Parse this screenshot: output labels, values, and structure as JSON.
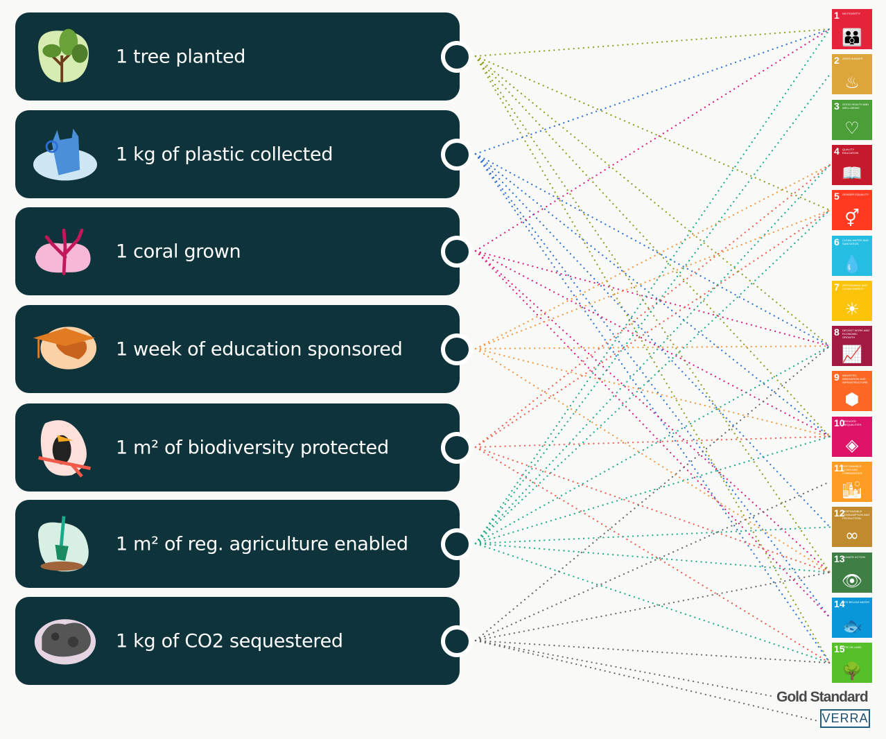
{
  "impacts": [
    {
      "label": "1 tree planted",
      "icon": "tree-icon",
      "color": "#8f9c1a",
      "targets": [
        "1",
        "5",
        "8",
        "10",
        "13",
        "15"
      ]
    },
    {
      "label": "1 kg of plastic collected",
      "icon": "plastic-bag-icon",
      "color": "#2a6fd6",
      "targets": [
        "1",
        "8",
        "10",
        "12",
        "14",
        "15"
      ]
    },
    {
      "label": "1 coral grown",
      "icon": "coral-icon",
      "color": "#d81b7a",
      "targets": [
        "1",
        "8",
        "10",
        "13",
        "14"
      ]
    },
    {
      "label": "1 week of education sponsored",
      "icon": "graduation-cap-icon",
      "color": "#f5963a",
      "targets": [
        "4",
        "5",
        "8",
        "10",
        "13"
      ]
    },
    {
      "label": "1 m² of biodiversity protected",
      "icon": "toucan-icon",
      "color": "#ef5a4a",
      "targets": [
        "4",
        "5",
        "10",
        "13",
        "15"
      ]
    },
    {
      "label": "1 m² of reg.  agriculture enabled",
      "icon": "shovel-icon",
      "color": "#1aaa8a",
      "targets": [
        "1",
        "2",
        "4",
        "5",
        "8",
        "10",
        "12",
        "13",
        "15"
      ]
    },
    {
      "label": "1 kg of CO2 sequestered",
      "icon": "rock-icon",
      "color": "#666666",
      "targets": [
        "8",
        "11",
        "13",
        "15",
        "gold",
        "verra"
      ]
    }
  ],
  "sdgs": [
    {
      "id": "1",
      "num": "1",
      "title": "No poverty",
      "color": "#e5243b",
      "icon": "people-icon",
      "glyph": "👪"
    },
    {
      "id": "2",
      "num": "2",
      "title": "Zero hunger",
      "color": "#dda63a",
      "icon": "bowl-icon",
      "glyph": "♨"
    },
    {
      "id": "3",
      "num": "3",
      "title": "Good health and well-being",
      "color": "#4c9f38",
      "icon": "heartbeat-icon",
      "glyph": "♡"
    },
    {
      "id": "4",
      "num": "4",
      "title": "Quality education",
      "color": "#c5192d",
      "icon": "book-icon",
      "glyph": "📖"
    },
    {
      "id": "5",
      "num": "5",
      "title": "Gender equality",
      "color": "#ff3a21",
      "icon": "gender-icon",
      "glyph": "⚥"
    },
    {
      "id": "6",
      "num": "6",
      "title": "Clean water and sanitation",
      "color": "#26bde2",
      "icon": "water-icon",
      "glyph": "💧"
    },
    {
      "id": "7",
      "num": "7",
      "title": "Affordable and clean energy",
      "color": "#fcc30b",
      "icon": "sun-power-icon",
      "glyph": "☀"
    },
    {
      "id": "8",
      "num": "8",
      "title": "Decent work and economic growth",
      "color": "#a21942",
      "icon": "growth-chart-icon",
      "glyph": "📈"
    },
    {
      "id": "9",
      "num": "9",
      "title": "Industry, innovation and infrastructure",
      "color": "#fd6925",
      "icon": "cubes-icon",
      "glyph": "⬢"
    },
    {
      "id": "10",
      "num": "10",
      "title": "Reduced inequalities",
      "color": "#dd1367",
      "icon": "arrows-icon",
      "glyph": "◈"
    },
    {
      "id": "11",
      "num": "11",
      "title": "Sustainable cities and communities",
      "color": "#fd9d24",
      "icon": "city-icon",
      "glyph": "🏙"
    },
    {
      "id": "12",
      "num": "12",
      "title": "Responsible consumption and production",
      "color": "#bf8b2e",
      "icon": "infinity-icon",
      "glyph": "∞"
    },
    {
      "id": "13",
      "num": "13",
      "title": "Climate action",
      "color": "#3f7e44",
      "icon": "eye-globe-icon",
      "glyph": "👁"
    },
    {
      "id": "14",
      "num": "14",
      "title": "Life below water",
      "color": "#0a97d9",
      "icon": "fish-icon",
      "glyph": "🐟"
    },
    {
      "id": "15",
      "num": "15",
      "title": "Life on land",
      "color": "#56c02b",
      "icon": "tree-birds-icon",
      "glyph": "🌳"
    }
  ],
  "logos": {
    "gold_standard": "Gold Standard",
    "verra": "VERRA"
  }
}
